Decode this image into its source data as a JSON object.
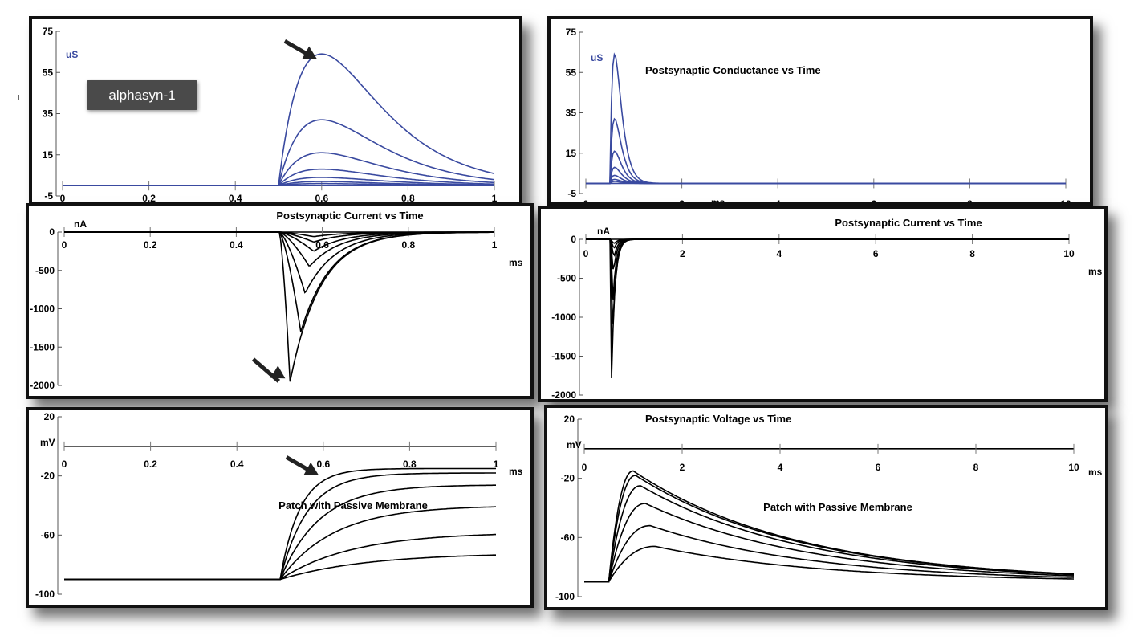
{
  "overlay_label": "alphasyn-1",
  "colors": {
    "conductance": "#3a4aa0",
    "current": "#000000",
    "voltage": "#000000"
  },
  "chart_data": [
    {
      "id": "g1",
      "type": "line",
      "title": "",
      "xlabel": "",
      "ylabel": "uS",
      "xlim": [
        0,
        1
      ],
      "ylim": [
        -5,
        75
      ],
      "xticks": [
        0,
        0.2,
        0.4,
        0.6,
        0.8,
        1
      ],
      "xtick_labels": [
        "0",
        "0.2",
        "0.4",
        "0.6",
        "0.8",
        "1"
      ],
      "yticks": [
        -5,
        15,
        35,
        55,
        75
      ],
      "ytick_labels": [
        "-5",
        "15",
        "35",
        "55",
        "75"
      ],
      "model": {
        "kind": "alpha",
        "onset": 0.5,
        "tau": 0.1,
        "peaks": [
          64,
          32,
          16,
          8,
          4,
          2,
          1
        ]
      },
      "arrow": {
        "x": 0.6,
        "y": 64
      }
    },
    {
      "id": "g10",
      "type": "line",
      "title": "Postsynaptic Conductance vs Time",
      "xlabel": "ms",
      "ylabel": "uS",
      "xlim": [
        0,
        10
      ],
      "ylim": [
        -5,
        75
      ],
      "xticks": [
        0,
        2,
        4,
        6,
        8,
        10
      ],
      "xtick_labels": [
        "0",
        "2",
        "4",
        "6",
        "8",
        "10"
      ],
      "yticks": [
        -5,
        15,
        35,
        55,
        75
      ],
      "ytick_labels": [
        "-5",
        "15",
        "35",
        "55",
        "75"
      ],
      "model": {
        "kind": "alpha",
        "onset": 0.5,
        "tau": 0.1,
        "peaks": [
          64,
          32,
          16,
          8,
          4,
          2,
          1
        ]
      }
    },
    {
      "id": "i1",
      "type": "line",
      "title": "Postsynaptic Current vs Time",
      "xlabel": "ms",
      "ylabel": "nA",
      "xlim": [
        0,
        1
      ],
      "ylim": [
        -2000,
        0
      ],
      "xticks": [
        0,
        0.2,
        0.4,
        0.6,
        0.8,
        1
      ],
      "xtick_labels": [
        "0",
        "0.2",
        "0.4",
        "0.6",
        "0.8",
        "1"
      ],
      "yticks": [
        0,
        -500,
        -1000,
        -1500,
        -2000
      ],
      "ytick_labels": [
        "0",
        "-500",
        "-1000",
        "-1500",
        "-2000"
      ],
      "model": {
        "kind": "current",
        "onset": 0.5,
        "traces": [
          [
            -1950,
            0.525
          ],
          [
            -1300,
            0.55
          ],
          [
            -800,
            0.56
          ],
          [
            -450,
            0.57
          ],
          [
            -250,
            0.58
          ],
          [
            -130,
            0.58
          ],
          [
            -60,
            0.58
          ]
        ],
        "tail_tau": 0.07
      },
      "arrow": {
        "x": 0.525,
        "y": -1950
      }
    },
    {
      "id": "i10",
      "type": "line",
      "title": "Postsynaptic Current vs Time",
      "xlabel": "ms",
      "ylabel": "nA",
      "xlim": [
        0,
        10
      ],
      "ylim": [
        -2000,
        0
      ],
      "xticks": [
        0,
        2,
        4,
        6,
        8,
        10
      ],
      "xtick_labels": [
        "0",
        "2",
        "4",
        "6",
        "8",
        "10"
      ],
      "yticks": [
        0,
        -500,
        -1000,
        -1500,
        -2000
      ],
      "ytick_labels": [
        "0",
        "-500",
        "-1000",
        "-1500",
        "-2000"
      ],
      "model": {
        "kind": "current",
        "onset": 0.5,
        "traces": [
          [
            -1950,
            0.525
          ],
          [
            -1300,
            0.55
          ],
          [
            -800,
            0.56
          ],
          [
            -450,
            0.57
          ],
          [
            -250,
            0.58
          ],
          [
            -130,
            0.58
          ],
          [
            -60,
            0.58
          ]
        ],
        "tail_tau": 0.07
      }
    },
    {
      "id": "v1",
      "type": "line",
      "title": "Patch with Passive Membrane",
      "xlabel": "ms",
      "ylabel": "mV",
      "xlim": [
        0,
        1
      ],
      "ylim": [
        -100,
        20
      ],
      "xticks": [
        0,
        0.2,
        0.4,
        0.6,
        0.8,
        1
      ],
      "xtick_labels": [
        "0",
        "0.2",
        "0.4",
        "0.6",
        "0.8",
        "1"
      ],
      "yticks": [
        20,
        -20,
        -60,
        -100
      ],
      "ytick_labels": [
        "20",
        "-20",
        "-60",
        "-100"
      ],
      "model": {
        "kind": "voltage_rise",
        "onset": 0.5,
        "rest": -90,
        "plateaus": [
          -15,
          -18,
          -26,
          -40,
          -58,
          -72
        ],
        "rates": [
          22,
          16,
          11,
          8,
          6,
          5
        ]
      },
      "arrow": {
        "x": 0.6,
        "y": -16
      }
    },
    {
      "id": "v10",
      "type": "line",
      "title": "Postsynaptic Voltage vs Time",
      "subtitle": "Patch with Passive Membrane",
      "xlabel": "ms",
      "ylabel": "mV",
      "xlim": [
        0,
        10
      ],
      "ylim": [
        -100,
        20
      ],
      "xticks": [
        0,
        2,
        4,
        6,
        8,
        10
      ],
      "xtick_labels": [
        "0",
        "2",
        "4",
        "6",
        "8",
        "10"
      ],
      "yticks": [
        20,
        -20,
        -60,
        -100
      ],
      "ytick_labels": [
        "20",
        "-20",
        "-60",
        "-100"
      ],
      "model": {
        "kind": "voltage_psp",
        "onset": 0.5,
        "rest": -90,
        "peaks": [
          -15,
          -18,
          -25,
          -37,
          -52,
          -66
        ],
        "t_peaks": [
          1.0,
          1.05,
          1.15,
          1.25,
          1.35,
          1.45
        ],
        "decay_tau": 3.4
      }
    }
  ]
}
